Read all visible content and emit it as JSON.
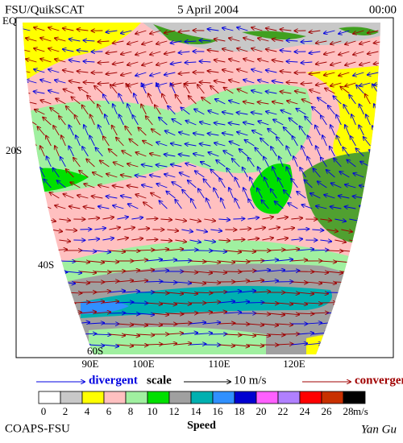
{
  "header": {
    "source": "FSU/QuikSCAT",
    "date": "5 April 2004",
    "time": "00:00"
  },
  "map": {
    "lat_labels": [
      "EQ",
      "20S",
      "40S",
      "60S"
    ],
    "lon_labels": [
      "90E",
      "100E",
      "110E",
      "120E"
    ]
  },
  "legend": {
    "divergent": "divergent",
    "scale": "scale",
    "scale_value": "10 m/s",
    "convergent": "convergent",
    "speed_ticks": [
      "0",
      "2",
      "4",
      "6",
      "8",
      "10",
      "12",
      "14",
      "16",
      "18",
      "20",
      "22",
      "24",
      "26",
      "28"
    ],
    "speed_colors": [
      "#ffffff",
      "#c8c8c8",
      "#ffff00",
      "#ffc0c0",
      "#a0f0a0",
      "#00e000",
      "#a0a0a0",
      "#00b0b0",
      "#3090ff",
      "#0000d0",
      "#ff60ff",
      "#b080ff",
      "#ff0000",
      "#c83000",
      "#000000"
    ],
    "unit": "m/s",
    "speed_label": "Speed"
  },
  "footer": {
    "credit": "COAPS-FSU",
    "author": "Yan Gu"
  }
}
